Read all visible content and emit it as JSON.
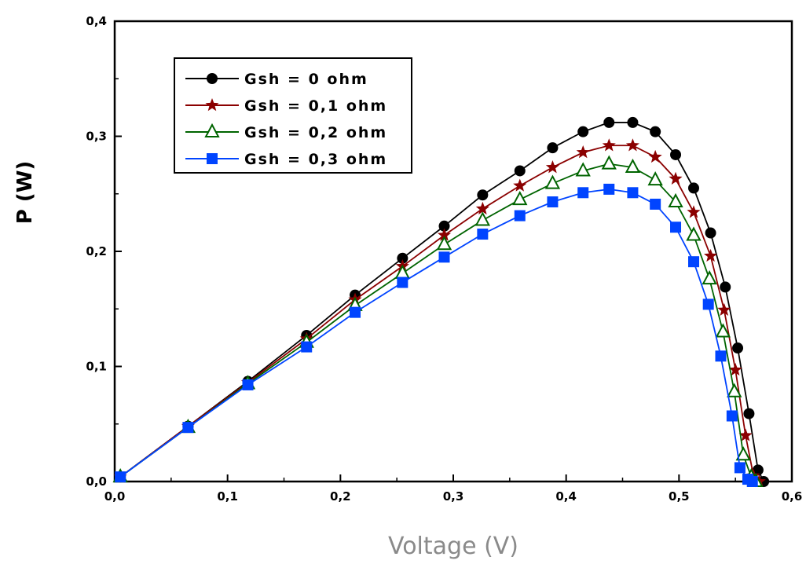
{
  "chart_data": {
    "type": "line",
    "xlabel": "Voltage (V)",
    "ylabel": "P (W)",
    "xlim": [
      0.0,
      0.6
    ],
    "ylim": [
      0.0,
      0.4
    ],
    "xticks": [
      "0,0",
      "0,1",
      "0,2",
      "0,3",
      "0,4",
      "0,5",
      "0,6"
    ],
    "yticks": [
      "0,0",
      "0,1",
      "0,2",
      "0,3",
      "0,4"
    ],
    "legend_position": "top-left",
    "grid": false,
    "series": [
      {
        "name": "Gsh = 0 ohm",
        "color": "#000000",
        "marker": "circle",
        "x": [
          0.005,
          0.065,
          0.118,
          0.17,
          0.213,
          0.255,
          0.292,
          0.326,
          0.359,
          0.388,
          0.415,
          0.438,
          0.459,
          0.479,
          0.497,
          0.513,
          0.528,
          0.541,
          0.552,
          0.562,
          0.57,
          0.575
        ],
        "y": [
          0.004,
          0.048,
          0.087,
          0.127,
          0.162,
          0.194,
          0.222,
          0.249,
          0.27,
          0.29,
          0.304,
          0.312,
          0.312,
          0.304,
          0.284,
          0.255,
          0.216,
          0.169,
          0.116,
          0.059,
          0.01,
          0.0
        ]
      },
      {
        "name": "Gsh = 0,1 ohm",
        "color": "#8b0000",
        "marker": "star",
        "x": [
          0.005,
          0.065,
          0.118,
          0.17,
          0.213,
          0.255,
          0.292,
          0.326,
          0.359,
          0.388,
          0.415,
          0.438,
          0.459,
          0.479,
          0.497,
          0.513,
          0.528,
          0.54,
          0.55,
          0.559,
          0.566,
          0.571
        ],
        "y": [
          0.004,
          0.048,
          0.086,
          0.124,
          0.158,
          0.187,
          0.214,
          0.237,
          0.257,
          0.273,
          0.286,
          0.292,
          0.292,
          0.282,
          0.263,
          0.234,
          0.196,
          0.149,
          0.097,
          0.04,
          0.005,
          0.0
        ]
      },
      {
        "name": "Gsh = 0,2 ohm",
        "color": "#006400",
        "marker": "triangle",
        "x": [
          0.005,
          0.065,
          0.118,
          0.17,
          0.213,
          0.255,
          0.292,
          0.326,
          0.359,
          0.388,
          0.415,
          0.438,
          0.459,
          0.479,
          0.497,
          0.513,
          0.527,
          0.539,
          0.549,
          0.557,
          0.564,
          0.568
        ],
        "y": [
          0.004,
          0.047,
          0.085,
          0.121,
          0.153,
          0.181,
          0.206,
          0.227,
          0.245,
          0.259,
          0.27,
          0.276,
          0.273,
          0.262,
          0.243,
          0.214,
          0.176,
          0.13,
          0.078,
          0.023,
          0.004,
          0.0
        ]
      },
      {
        "name": "Gsh = 0,3 ohm",
        "color": "#0044ff",
        "marker": "square",
        "x": [
          0.005,
          0.065,
          0.118,
          0.17,
          0.213,
          0.255,
          0.292,
          0.326,
          0.359,
          0.388,
          0.415,
          0.438,
          0.459,
          0.479,
          0.497,
          0.513,
          0.526,
          0.537,
          0.547,
          0.554,
          0.561,
          0.565
        ],
        "y": [
          0.004,
          0.047,
          0.084,
          0.117,
          0.147,
          0.173,
          0.195,
          0.215,
          0.231,
          0.243,
          0.251,
          0.254,
          0.251,
          0.241,
          0.221,
          0.191,
          0.154,
          0.109,
          0.057,
          0.012,
          0.002,
          0.0
        ]
      }
    ]
  }
}
